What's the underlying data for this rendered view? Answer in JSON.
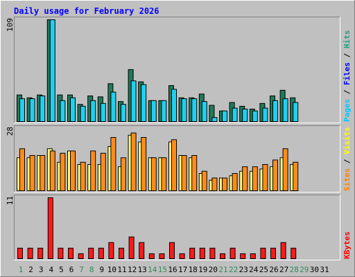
{
  "chart_data": {
    "type": "bar",
    "title": "Daily usage for February 2026",
    "categories": [
      "1",
      "2",
      "3",
      "4",
      "5",
      "6",
      "7",
      "8",
      "9",
      "10",
      "11",
      "12",
      "13",
      "14",
      "15",
      "16",
      "17",
      "18",
      "19",
      "20",
      "21",
      "22",
      "23",
      "24",
      "25",
      "26",
      "27",
      "28",
      "29",
      "30",
      "31"
    ],
    "category_colors": [
      "#2e8b57",
      "#000000",
      "#000000",
      "#000000",
      "#000000",
      "#000000",
      "#2e8b57",
      "#2e8b57",
      "#000000",
      "#000000",
      "#000000",
      "#000000",
      "#000000",
      "#2e8b57",
      "#2e8b57",
      "#000000",
      "#000000",
      "#000000",
      "#000000",
      "#000000",
      "#2e8b57",
      "#2e8b57",
      "#000000",
      "#000000",
      "#000000",
      "#000000",
      "#000000",
      "#2e8b57",
      "#2e8b57",
      "#000000",
      "#000000"
    ],
    "panels": [
      {
        "id": "hits-files-pages",
        "ymax_label": "109",
        "ymax": 109,
        "legend": [
          {
            "text": "Pages",
            "color": "#00c8ff"
          },
          {
            "text": " / ",
            "color": "#000000"
          },
          {
            "text": "Files",
            "color": "#0000ff"
          },
          {
            "text": " / ",
            "color": "#000000"
          },
          {
            "text": "Hits",
            "color": "#20a080"
          }
        ],
        "series": [
          {
            "name": "Hits",
            "color": "#207a5a",
            "values": [
              29,
              26,
              29,
              109,
              29,
              29,
              19,
              28,
              27,
              41,
              22,
              56,
              43,
              23,
              23,
              39,
              26,
              26,
              30,
              18,
              12,
              21,
              17,
              14,
              20,
              28,
              34,
              26,
              0,
              0,
              0
            ]
          },
          {
            "name": "Files",
            "color": "#20d0f0",
            "values": [
              25,
              25,
              28,
              109,
              23,
              26,
              17,
              23,
              20,
              32,
              19,
              44,
              40,
              23,
              23,
              35,
              25,
              25,
              22,
              5,
              12,
              15,
              14,
              12,
              15,
              23,
              25,
              21,
              0,
              0,
              0
            ]
          }
        ]
      },
      {
        "id": "visits-sites",
        "ymax_label": "28",
        "ymax": 28,
        "legend": [
          {
            "text": "Sites",
            "color": "#ff8000"
          },
          {
            "text": " / ",
            "color": "#000000"
          },
          {
            "text": "Visits",
            "color": "#ffff00"
          }
        ],
        "series": [
          {
            "name": "Visits",
            "color": "#ffff80",
            "values": [
              15,
              15,
              16,
              19,
              13,
              18,
              12,
              12,
              12,
              20,
              11,
              25,
              22,
              15,
              15,
              22,
              16,
              15,
              8,
              5,
              6,
              7,
              9,
              9,
              10,
              11,
              15,
              12,
              0,
              0,
              0
            ]
          },
          {
            "name": "Sites",
            "color": "#ff8c1a",
            "values": [
              19,
              16,
              16,
              18,
              17,
              18,
              13,
              18,
              17,
              24,
              15,
              26,
              24,
              15,
              15,
              23,
              16,
              16,
              9,
              6,
              6,
              8,
              11,
              11,
              12,
              14,
              19,
              13,
              0,
              0,
              0
            ]
          }
        ]
      },
      {
        "id": "kbytes",
        "ymax_label": "11",
        "ymax": 11,
        "legend": [
          {
            "text": "KBytes",
            "color": "#ff0000"
          }
        ],
        "series": [
          {
            "name": "KBytes",
            "color": "#ff1a1a",
            "values": [
              2,
              2,
              2,
              11,
              2,
              2,
              1,
              2,
              2,
              3,
              2,
              4,
              3,
              1,
              1,
              3,
              1,
              2,
              2,
              2,
              1,
              2,
              1,
              1,
              2,
              2,
              3,
              2,
              0,
              0,
              0
            ]
          }
        ]
      }
    ]
  }
}
